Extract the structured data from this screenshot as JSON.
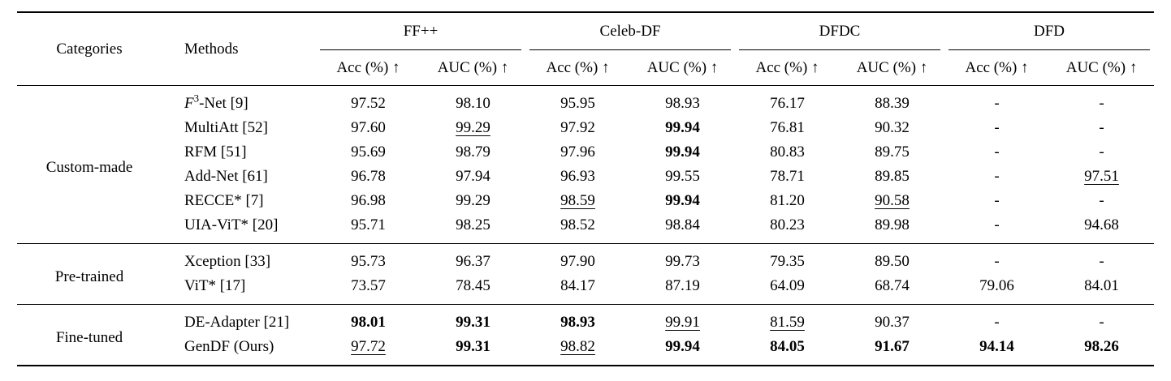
{
  "header": {
    "categories": "Categories",
    "methods": "Methods",
    "datasets": [
      "FF++",
      "Celeb-DF",
      "DFDC",
      "DFD"
    ],
    "acc_label": "Acc (%) ↑",
    "auc_label": "AUC (%) ↑"
  },
  "groups": [
    {
      "category": "Custom-made",
      "rows": [
        {
          "method": [
            {
              "t": "F",
              "i": true
            },
            {
              "t": "3",
              "sup": true
            },
            {
              "t": "-Net [9]"
            }
          ],
          "cells": [
            {
              "v": "97.52"
            },
            {
              "v": "98.10"
            },
            {
              "v": "95.95"
            },
            {
              "v": "98.93"
            },
            {
              "v": "76.17"
            },
            {
              "v": "88.39"
            },
            {
              "v": "-"
            },
            {
              "v": "-"
            }
          ]
        },
        {
          "method": [
            {
              "t": "MultiAtt [52]"
            }
          ],
          "cells": [
            {
              "v": "97.60"
            },
            {
              "v": "99.29",
              "s": "u"
            },
            {
              "v": "97.92"
            },
            {
              "v": "99.94",
              "s": "b"
            },
            {
              "v": "76.81"
            },
            {
              "v": "90.32"
            },
            {
              "v": "-"
            },
            {
              "v": "-"
            }
          ]
        },
        {
          "method": [
            {
              "t": "RFM [51]"
            }
          ],
          "cells": [
            {
              "v": "95.69"
            },
            {
              "v": "98.79"
            },
            {
              "v": "97.96"
            },
            {
              "v": "99.94",
              "s": "b"
            },
            {
              "v": "80.83"
            },
            {
              "v": "89.75"
            },
            {
              "v": "-"
            },
            {
              "v": "-"
            }
          ]
        },
        {
          "method": [
            {
              "t": "Add-Net [61]"
            }
          ],
          "cells": [
            {
              "v": "96.78"
            },
            {
              "v": "97.94"
            },
            {
              "v": "96.93"
            },
            {
              "v": "99.55"
            },
            {
              "v": "78.71"
            },
            {
              "v": "89.85"
            },
            {
              "v": "-"
            },
            {
              "v": "97.51",
              "s": "u"
            }
          ]
        },
        {
          "method": [
            {
              "t": "RECCE* [7]"
            }
          ],
          "cells": [
            {
              "v": "96.98"
            },
            {
              "v": "99.29"
            },
            {
              "v": "98.59",
              "s": "u"
            },
            {
              "v": "99.94",
              "s": "b"
            },
            {
              "v": "81.20"
            },
            {
              "v": "90.58",
              "s": "u"
            },
            {
              "v": "-"
            },
            {
              "v": "-"
            }
          ]
        },
        {
          "method": [
            {
              "t": "UIA-ViT* [20]"
            }
          ],
          "cells": [
            {
              "v": "95.71"
            },
            {
              "v": "98.25"
            },
            {
              "v": "98.52"
            },
            {
              "v": "98.84"
            },
            {
              "v": "80.23"
            },
            {
              "v": "89.98"
            },
            {
              "v": "-"
            },
            {
              "v": "94.68"
            }
          ]
        }
      ]
    },
    {
      "category": "Pre-trained",
      "rows": [
        {
          "method": [
            {
              "t": "Xception [33]"
            }
          ],
          "cells": [
            {
              "v": "95.73"
            },
            {
              "v": "96.37"
            },
            {
              "v": "97.90"
            },
            {
              "v": "99.73"
            },
            {
              "v": "79.35"
            },
            {
              "v": "89.50"
            },
            {
              "v": "-"
            },
            {
              "v": "-"
            }
          ]
        },
        {
          "method": [
            {
              "t": "ViT* [17]"
            }
          ],
          "cells": [
            {
              "v": "73.57"
            },
            {
              "v": "78.45"
            },
            {
              "v": "84.17"
            },
            {
              "v": "87.19"
            },
            {
              "v": "64.09"
            },
            {
              "v": "68.74"
            },
            {
              "v": "79.06"
            },
            {
              "v": "84.01"
            }
          ]
        }
      ]
    },
    {
      "category": "Fine-tuned",
      "rows": [
        {
          "method": [
            {
              "t": "DE-Adapter [21]"
            }
          ],
          "cells": [
            {
              "v": "98.01",
              "s": "b"
            },
            {
              "v": "99.31",
              "s": "b"
            },
            {
              "v": "98.93",
              "s": "b"
            },
            {
              "v": "99.91",
              "s": "u"
            },
            {
              "v": "81.59",
              "s": "u"
            },
            {
              "v": "90.37"
            },
            {
              "v": "-"
            },
            {
              "v": "-"
            }
          ]
        },
        {
          "method": [
            {
              "t": "GenDF (Ours)"
            }
          ],
          "cells": [
            {
              "v": "97.72",
              "s": "u"
            },
            {
              "v": "99.31",
              "s": "b"
            },
            {
              "v": "98.82",
              "s": "u"
            },
            {
              "v": "99.94",
              "s": "b"
            },
            {
              "v": "84.05",
              "s": "b"
            },
            {
              "v": "91.67",
              "s": "b"
            },
            {
              "v": "94.14",
              "s": "b"
            },
            {
              "v": "98.26",
              "s": "b"
            }
          ]
        }
      ]
    }
  ]
}
